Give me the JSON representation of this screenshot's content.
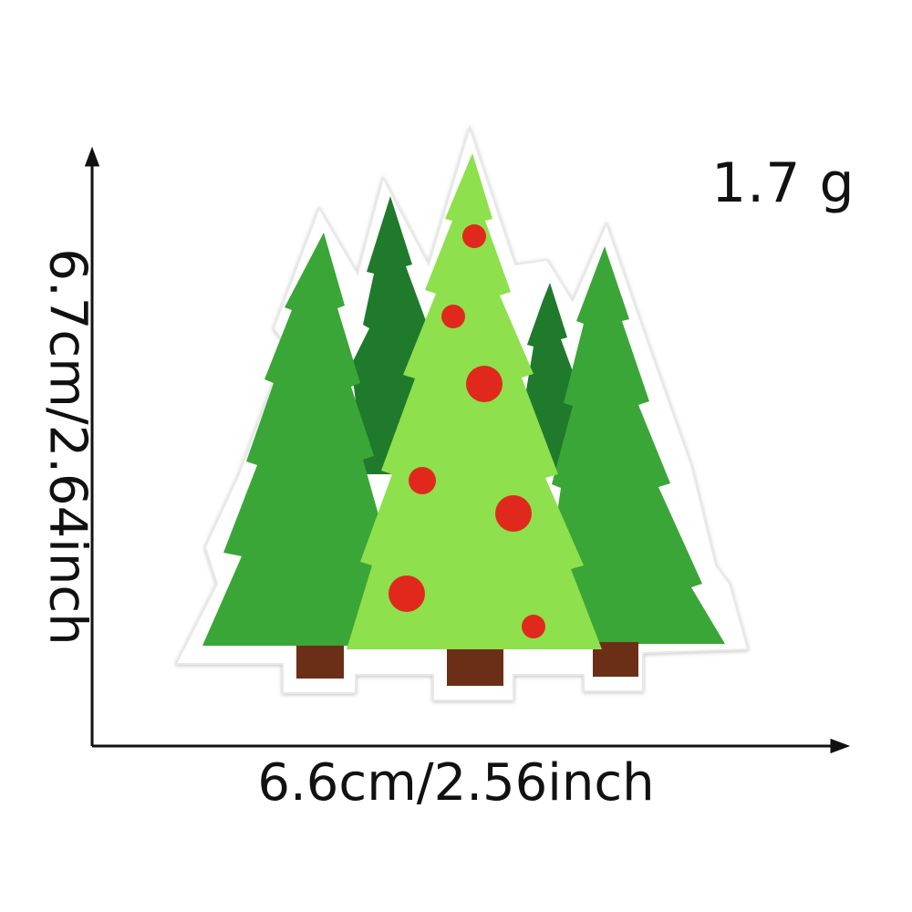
{
  "dimensions": {
    "width": "6.6cm/2.56inch",
    "height": "6.7cm/2.64inch"
  },
  "weight": "1.7 g",
  "colors": {
    "tree_light": "#8ee04c",
    "tree_mid": "#3aa637",
    "tree_dark": "#1f7a2c",
    "trunk": "#6b2f18",
    "ornament": "#e0291c",
    "felt_border": "#ffffff"
  }
}
